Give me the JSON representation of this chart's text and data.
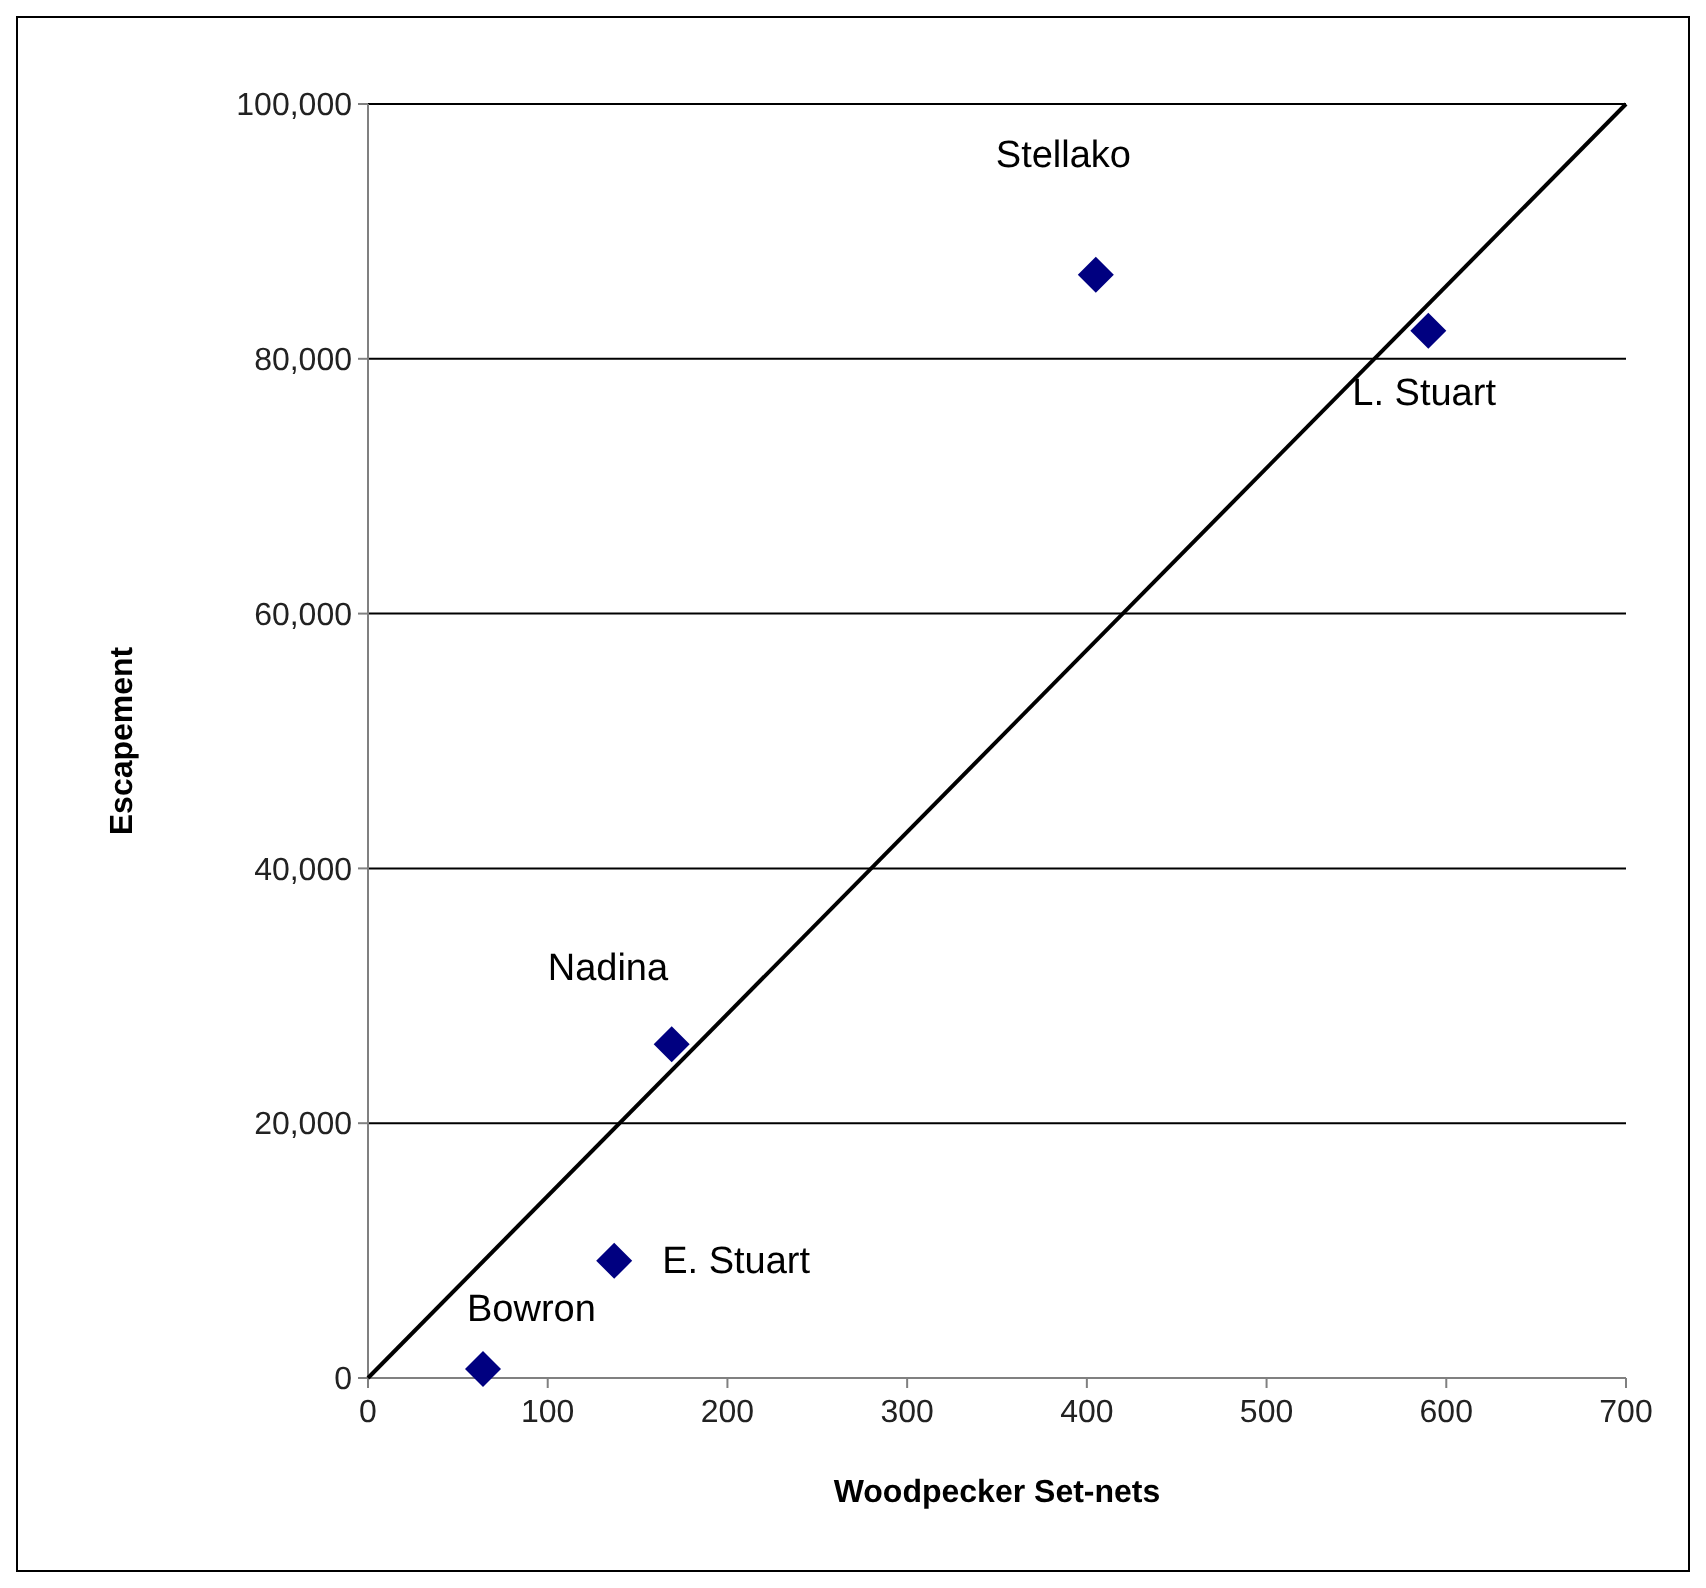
{
  "chart_data": {
    "type": "scatter",
    "xlabel": "Woodpecker Set-nets",
    "ylabel": "Escapement",
    "xlim": [
      0,
      700
    ],
    "ylim": [
      0,
      100000
    ],
    "xticks": [
      0,
      100,
      200,
      300,
      400,
      500,
      600,
      700
    ],
    "yticks": [
      {
        "value": 0,
        "label": "0"
      },
      {
        "value": 20000,
        "label": "20,000"
      },
      {
        "value": 40000,
        "label": "40,000"
      },
      {
        "value": 60000,
        "label": "60,000"
      },
      {
        "value": 80000,
        "label": "80,000"
      },
      {
        "value": 100000,
        "label": "100,000"
      }
    ],
    "grid": "y",
    "marker": "diamond",
    "series": [
      {
        "color": "#000080",
        "x": [
          64,
          137,
          169,
          405,
          590
        ],
        "values": [
          700,
          9200,
          26200,
          86600,
          82200
        ]
      },
      {
        "type": "line",
        "color": "#000000",
        "x": [
          0,
          700
        ],
        "values": [
          0,
          100000
        ],
        "marker": "none"
      }
    ],
    "annotations": [
      {
        "text": "Bowron",
        "x": 64,
        "y": 700
      },
      {
        "text": "E. Stuart",
        "x": 137,
        "y": 9200
      },
      {
        "text": "Nadina",
        "x": 169,
        "y": 26200
      },
      {
        "text": "Stellako",
        "x": 405,
        "y": 86600
      },
      {
        "text": "L. Stuart",
        "x": 590,
        "y": 82200
      }
    ]
  }
}
